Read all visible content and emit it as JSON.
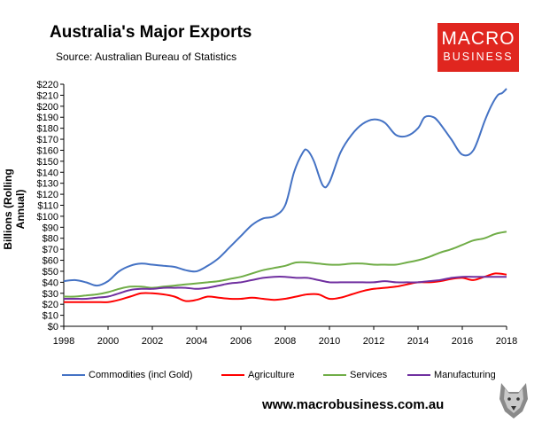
{
  "header": {
    "title": "Australia's Major Exports",
    "subtitle": "Source:  Australian Bureau of Statistics"
  },
  "logo": {
    "line1": "MACRO",
    "line2": "BUSINESS",
    "color": "#e0261f"
  },
  "footer": {
    "url": "www.macrobusiness.com.au"
  },
  "chart_data": {
    "type": "line",
    "title": "Australia's Major Exports",
    "xlabel": "",
    "ylabel": "Billions (Rolling Annual)",
    "xlim": [
      1998,
      2018
    ],
    "ylim": [
      0,
      220
    ],
    "x_ticks": [
      1998,
      2000,
      2002,
      2004,
      2006,
      2008,
      2010,
      2012,
      2014,
      2016,
      2018
    ],
    "x_tick_labels": [
      "1998",
      "2000",
      "2002",
      "2004",
      "2006",
      "2008",
      "2010",
      "2012",
      "2014",
      "2016",
      "2018"
    ],
    "y_ticks": [
      0,
      10,
      20,
      30,
      40,
      50,
      60,
      70,
      80,
      90,
      100,
      110,
      120,
      130,
      140,
      150,
      160,
      170,
      180,
      190,
      200,
      210,
      220
    ],
    "y_tick_labels": [
      "$0",
      "$10",
      "$20",
      "$30",
      "$40",
      "$50",
      "$60",
      "$70",
      "$80",
      "$90",
      "$100",
      "$110",
      "$120",
      "$130",
      "$140",
      "$150",
      "$160",
      "$170",
      "$180",
      "$190",
      "$200",
      "$210",
      "$220"
    ],
    "grid": false,
    "legend_position": "bottom",
    "series": [
      {
        "name": "Commodities (incl Gold)",
        "color": "#4472c4",
        "x": [
          1998,
          1998.5,
          1999,
          1999.5,
          2000,
          2000.5,
          2001,
          2001.5,
          2002,
          2002.5,
          2003,
          2003.5,
          2004,
          2004.5,
          2005,
          2005.5,
          2006,
          2006.5,
          2007,
          2007.5,
          2008,
          2008.4,
          2008.8,
          2009,
          2009.3,
          2009.7,
          2010,
          2010.5,
          2011,
          2011.5,
          2012,
          2012.5,
          2013,
          2013.5,
          2014,
          2014.3,
          2014.7,
          2015,
          2015.5,
          2016,
          2016.5,
          2017,
          2017.3,
          2017.6,
          2017.8,
          2018
        ],
        "values": [
          41,
          42,
          40,
          37,
          41,
          50,
          55,
          57,
          56,
          55,
          54,
          51,
          50,
          55,
          62,
          72,
          82,
          92,
          98,
          100,
          110,
          140,
          158,
          160,
          150,
          128,
          131,
          158,
          174,
          184,
          188,
          185,
          174,
          173,
          180,
          190,
          190,
          184,
          170,
          156,
          160,
          186,
          200,
          210,
          212,
          216
        ]
      },
      {
        "name": "Agriculture",
        "color": "#ff0000",
        "x": [
          1998,
          1998.5,
          1999,
          1999.5,
          2000,
          2000.5,
          2001,
          2001.5,
          2002,
          2002.5,
          2003,
          2003.5,
          2004,
          2004.5,
          2005,
          2005.5,
          2006,
          2006.5,
          2007,
          2007.5,
          2008,
          2008.5,
          2009,
          2009.5,
          2010,
          2010.5,
          2011,
          2011.5,
          2012,
          2012.5,
          2013,
          2013.5,
          2014,
          2014.5,
          2015,
          2015.5,
          2016,
          2016.5,
          2017,
          2017.5,
          2018
        ],
        "values": [
          22,
          22,
          22,
          22,
          22,
          24,
          27,
          30,
          30,
          29,
          27,
          23,
          24,
          27,
          26,
          25,
          25,
          26,
          25,
          24,
          25,
          27,
          29,
          29,
          25,
          26,
          29,
          32,
          34,
          35,
          36,
          38,
          40,
          40,
          41,
          43,
          44,
          42,
          45,
          48,
          47
        ]
      },
      {
        "name": "Services",
        "color": "#70ad47",
        "x": [
          1998,
          1998.5,
          1999,
          1999.5,
          2000,
          2000.5,
          2001,
          2001.5,
          2002,
          2002.5,
          2003,
          2003.5,
          2004,
          2004.5,
          2005,
          2005.5,
          2006,
          2006.5,
          2007,
          2007.5,
          2008,
          2008.5,
          2009,
          2009.5,
          2010,
          2010.5,
          2011,
          2011.5,
          2012,
          2012.5,
          2013,
          2013.5,
          2014,
          2014.5,
          2015,
          2015.5,
          2016,
          2016.5,
          2017,
          2017.5,
          2018
        ],
        "values": [
          27,
          27,
          28,
          29,
          31,
          34,
          36,
          36,
          35,
          36,
          37,
          38,
          39,
          40,
          41,
          43,
          45,
          48,
          51,
          53,
          55,
          58,
          58,
          57,
          56,
          56,
          57,
          57,
          56,
          56,
          56,
          58,
          60,
          63,
          67,
          70,
          74,
          78,
          80,
          84,
          86
        ]
      },
      {
        "name": "Manufacturing",
        "color": "#7030a0",
        "x": [
          1998,
          1998.5,
          1999,
          1999.5,
          2000,
          2000.5,
          2001,
          2001.5,
          2002,
          2002.5,
          2003,
          2003.5,
          2004,
          2004.5,
          2005,
          2005.5,
          2006,
          2006.5,
          2007,
          2007.5,
          2008,
          2008.5,
          2009,
          2009.5,
          2010,
          2010.5,
          2011,
          2011.5,
          2012,
          2012.5,
          2013,
          2013.5,
          2014,
          2014.5,
          2015,
          2015.5,
          2016,
          2016.5,
          2017,
          2017.5,
          2018
        ],
        "values": [
          25,
          25,
          25,
          26,
          27,
          30,
          33,
          34,
          34,
          35,
          35,
          35,
          34,
          35,
          37,
          39,
          40,
          42,
          44,
          45,
          45,
          44,
          44,
          42,
          40,
          40,
          40,
          40,
          40,
          41,
          40,
          40,
          40,
          41,
          42,
          44,
          45,
          45,
          45,
          45,
          45
        ]
      }
    ]
  }
}
